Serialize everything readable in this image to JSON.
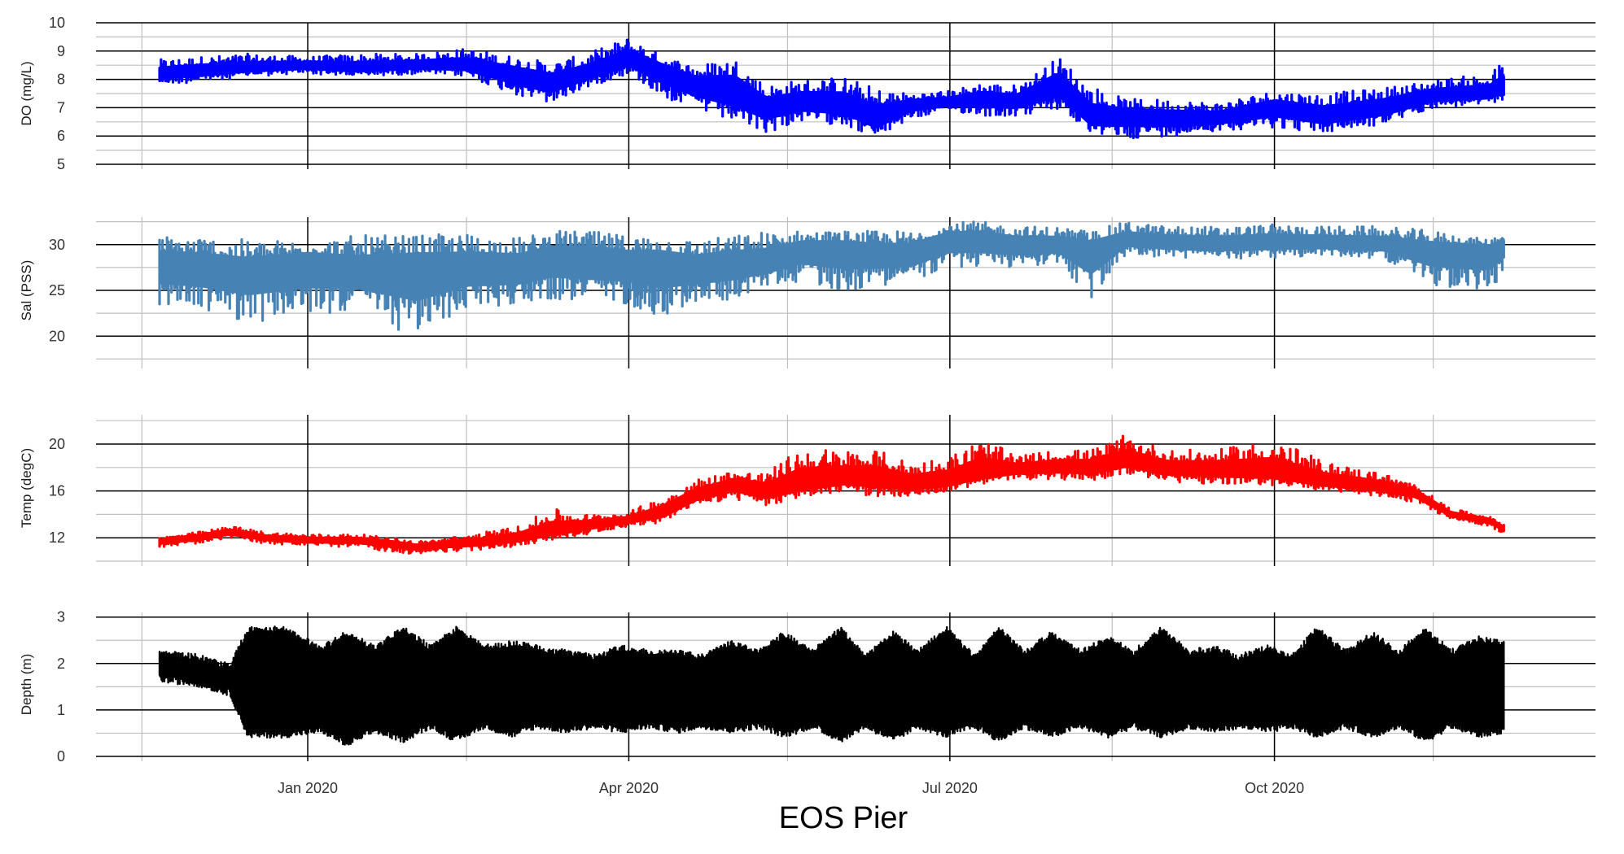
{
  "figure": {
    "xlabel": "EOS Pier"
  },
  "chart_data": [
    {
      "type": "line",
      "ylabel": "DO (mg/L)",
      "color": "#0000ff",
      "ylim": [
        5,
        10
      ],
      "yticks": [
        5,
        6,
        7,
        8,
        9,
        10
      ],
      "xlim": [
        "2019-11-02",
        "2020-12-31"
      ],
      "xticks": [
        "2020-01-01",
        "2020-04-01",
        "2020-07-01",
        "2020-10-01"
      ],
      "xticklabels": [
        "Jan 2020",
        "Apr 2020",
        "Jul 2020",
        "Oct 2020"
      ],
      "series": [
        {
          "x": [
            "2019-11-20",
            "2019-12-01",
            "2019-12-15",
            "2020-01-01",
            "2020-01-15",
            "2020-02-01",
            "2020-02-15",
            "2020-03-01",
            "2020-03-10",
            "2020-03-20",
            "2020-04-01",
            "2020-04-10",
            "2020-04-20",
            "2020-05-01",
            "2020-05-10",
            "2020-05-20",
            "2020-06-01",
            "2020-06-10",
            "2020-06-20",
            "2020-07-01",
            "2020-07-10",
            "2020-07-20",
            "2020-08-01",
            "2020-08-10",
            "2020-08-20",
            "2020-09-01",
            "2020-09-15",
            "2020-10-01",
            "2020-10-15",
            "2020-11-01",
            "2020-11-15",
            "2020-12-01",
            "2020-12-05"
          ],
          "ymid": [
            8.2,
            8.3,
            8.4,
            8.5,
            8.4,
            8.5,
            8.5,
            8.1,
            7.9,
            8.2,
            8.7,
            8.3,
            7.8,
            7.6,
            7.0,
            7.2,
            7.1,
            6.6,
            7.1,
            7.2,
            7.3,
            7.2,
            7.8,
            6.6,
            6.7,
            6.6,
            6.6,
            7.0,
            6.7,
            7.0,
            7.4,
            7.5,
            7.7
          ],
          "ybot": [
            7.8,
            7.9,
            8.1,
            8.2,
            8.1,
            8.2,
            8.1,
            7.4,
            7.1,
            7.7,
            8.2,
            7.4,
            6.9,
            6.4,
            6.1,
            6.5,
            6.4,
            5.9,
            6.6,
            6.9,
            6.7,
            6.7,
            6.9,
            6.1,
            5.9,
            6.0,
            6.2,
            6.3,
            6.1,
            6.4,
            7.0,
            7.1,
            7.3
          ],
          "ytop": [
            8.7,
            8.8,
            8.9,
            8.8,
            8.9,
            8.9,
            9.1,
            8.8,
            8.6,
            8.9,
            9.5,
            8.9,
            8.5,
            8.8,
            7.8,
            8.0,
            8.1,
            7.7,
            7.5,
            7.6,
            7.9,
            7.8,
            8.8,
            7.8,
            7.3,
            7.3,
            7.2,
            7.6,
            7.5,
            7.7,
            8.0,
            8.2,
            8.7
          ]
        }
      ]
    },
    {
      "type": "line",
      "ylabel": "Sal (PSS)",
      "color": "#4682b4",
      "ylim": [
        17,
        33
      ],
      "yticks": [
        20,
        25,
        30
      ],
      "xlim": [
        "2019-11-02",
        "2020-12-31"
      ],
      "xticks": [
        "2020-01-01",
        "2020-04-01",
        "2020-07-01",
        "2020-10-01"
      ],
      "xticklabels": [
        "Jan 2020",
        "Apr 2020",
        "Jul 2020",
        "Oct 2020"
      ],
      "series": [
        {
          "x": [
            "2019-11-20",
            "2019-12-01",
            "2019-12-15",
            "2020-01-01",
            "2020-01-15",
            "2020-02-01",
            "2020-02-15",
            "2020-03-01",
            "2020-03-10",
            "2020-03-20",
            "2020-04-01",
            "2020-04-10",
            "2020-04-20",
            "2020-05-01",
            "2020-05-10",
            "2020-05-20",
            "2020-06-01",
            "2020-06-10",
            "2020-06-20",
            "2020-07-01",
            "2020-07-10",
            "2020-07-20",
            "2020-08-01",
            "2020-08-10",
            "2020-08-20",
            "2020-09-01",
            "2020-09-15",
            "2020-10-01",
            "2020-10-15",
            "2020-11-01",
            "2020-11-15",
            "2020-12-01",
            "2020-12-05"
          ],
          "ymid": [
            28,
            27.5,
            27,
            28,
            27,
            27.5,
            27.5,
            27.5,
            28.5,
            28.5,
            28,
            28,
            27.5,
            28,
            28,
            29.5,
            29.5,
            29,
            29,
            30.5,
            30.5,
            30,
            30,
            29.5,
            30.5,
            30.3,
            30,
            30.3,
            30.2,
            30,
            29.3,
            29.5,
            29.6
          ],
          "ybot": [
            23,
            23,
            21.5,
            22,
            23,
            19.5,
            23,
            23.5,
            24,
            23.5,
            23.5,
            22,
            23.5,
            24,
            25.5,
            26,
            24.8,
            25.5,
            26,
            27.5,
            27.5,
            27.5,
            28,
            23.5,
            29,
            28.5,
            28.5,
            28.5,
            28.8,
            28.5,
            25.5,
            24.5,
            27.5
          ],
          "ytop": [
            31,
            31,
            30.5,
            30.5,
            31,
            31,
            31.2,
            30.8,
            31.5,
            31.5,
            31,
            31,
            30.5,
            31,
            31.5,
            31.5,
            31.5,
            31.5,
            31.5,
            32.5,
            32.5,
            32,
            32,
            31.5,
            32.5,
            32,
            32,
            32.2,
            32,
            32,
            31.5,
            30.5,
            31.8
          ]
        }
      ]
    },
    {
      "type": "line",
      "ylabel": "Temp (degC)",
      "color": "#ff0000",
      "ylim": [
        10,
        22.5
      ],
      "yticks": [
        12,
        16,
        20
      ],
      "xlim": [
        "2019-11-02",
        "2020-12-31"
      ],
      "xticks": [
        "2020-01-01",
        "2020-04-01",
        "2020-07-01",
        "2020-10-01"
      ],
      "xticklabels": [
        "Jan 2020",
        "Apr 2020",
        "Jul 2020",
        "Oct 2020"
      ],
      "series": [
        {
          "x": [
            "2019-11-20",
            "2019-12-01",
            "2019-12-10",
            "2019-12-20",
            "2020-01-01",
            "2020-01-15",
            "2020-01-25",
            "2020-02-01",
            "2020-02-10",
            "2020-02-20",
            "2020-03-01",
            "2020-03-10",
            "2020-03-20",
            "2020-04-01",
            "2020-04-10",
            "2020-04-20",
            "2020-05-01",
            "2020-05-10",
            "2020-05-20",
            "2020-06-01",
            "2020-06-10",
            "2020-06-20",
            "2020-07-01",
            "2020-07-10",
            "2020-07-20",
            "2020-08-01",
            "2020-08-10",
            "2020-08-20",
            "2020-09-01",
            "2020-09-15",
            "2020-10-01",
            "2020-10-15",
            "2020-11-01",
            "2020-11-10",
            "2020-11-20",
            "2020-12-01",
            "2020-12-05"
          ],
          "ymid": [
            11.8,
            12.0,
            12.5,
            12.0,
            11.8,
            11.8,
            11.5,
            11.2,
            11.5,
            11.6,
            12.0,
            12.5,
            13.0,
            13.5,
            14.0,
            15.5,
            16.5,
            16.0,
            16.5,
            17.0,
            17.0,
            16.5,
            16.8,
            17.5,
            17.8,
            18.0,
            18.0,
            18.5,
            17.8,
            17.8,
            17.5,
            16.8,
            16.3,
            15.8,
            14.0,
            13.5,
            12.8
          ],
          "ybot": [
            11.2,
            11.5,
            12.0,
            11.5,
            11.3,
            11.2,
            10.8,
            10.6,
            10.8,
            11.0,
            11.3,
            11.8,
            12.3,
            13.0,
            13.3,
            14.8,
            15.3,
            14.5,
            15.5,
            16.0,
            15.5,
            15.5,
            16.0,
            16.5,
            17.0,
            17.0,
            16.8,
            17.5,
            16.8,
            16.5,
            16.5,
            16.0,
            15.5,
            15.0,
            13.6,
            13.0,
            12.3
          ],
          "ytop": [
            12.0,
            12.5,
            13.0,
            12.5,
            12.3,
            12.3,
            12.0,
            11.7,
            12.0,
            12.5,
            13.0,
            14.5,
            14.0,
            14.2,
            15.5,
            17.0,
            17.8,
            17.5,
            19.8,
            19.5,
            19.5,
            18.5,
            19.0,
            20.5,
            19.0,
            19.5,
            19.5,
            20.8,
            19.5,
            19.5,
            20.5,
            18.5,
            17.5,
            16.5,
            14.5,
            13.8,
            13.2
          ]
        }
      ]
    },
    {
      "type": "line",
      "ylabel": "Depth (m)",
      "color": "#000000",
      "ylim": [
        0,
        3.1
      ],
      "yticks": [
        0,
        1,
        2,
        3
      ],
      "xlim": [
        "2019-11-02",
        "2020-12-31"
      ],
      "xticks": [
        "2020-01-01",
        "2020-04-01",
        "2020-07-01",
        "2020-10-01"
      ],
      "xticklabels": [
        "Jan 2020",
        "Apr 2020",
        "Jul 2020",
        "Oct 2020"
      ],
      "series": [
        {
          "x": [
            "2019-11-20",
            "2019-12-01",
            "2019-12-10",
            "2019-12-15",
            "2019-12-25",
            "2020-01-05",
            "2020-01-12",
            "2020-01-20",
            "2020-01-28",
            "2020-02-05",
            "2020-02-12",
            "2020-02-20",
            "2020-02-28",
            "2020-03-06",
            "2020-03-14",
            "2020-03-22",
            "2020-03-30",
            "2020-04-07",
            "2020-04-15",
            "2020-04-22",
            "2020-04-30",
            "2020-05-08",
            "2020-05-15",
            "2020-05-23",
            "2020-05-31",
            "2020-06-07",
            "2020-06-15",
            "2020-06-22",
            "2020-06-30",
            "2020-07-08",
            "2020-07-15",
            "2020-07-22",
            "2020-07-30",
            "2020-08-07",
            "2020-08-15",
            "2020-08-22",
            "2020-08-30",
            "2020-09-07",
            "2020-09-14",
            "2020-09-21",
            "2020-09-29",
            "2020-10-06",
            "2020-10-13",
            "2020-10-21",
            "2020-10-29",
            "2020-11-05",
            "2020-11-13",
            "2020-11-20",
            "2020-11-28",
            "2020-12-05"
          ],
          "ymin": [
            1.6,
            1.5,
            1.3,
            0.4,
            0.4,
            0.5,
            0.2,
            0.5,
            0.3,
            0.6,
            0.3,
            0.6,
            0.4,
            0.6,
            0.5,
            0.6,
            0.5,
            0.6,
            0.5,
            0.6,
            0.5,
            0.6,
            0.4,
            0.6,
            0.3,
            0.6,
            0.3,
            0.6,
            0.4,
            0.6,
            0.3,
            0.6,
            0.4,
            0.6,
            0.4,
            0.6,
            0.4,
            0.6,
            0.5,
            0.6,
            0.5,
            0.6,
            0.4,
            0.6,
            0.4,
            0.6,
            0.3,
            0.6,
            0.4,
            0.5
          ],
          "ymax": [
            2.3,
            2.2,
            2.0,
            2.8,
            2.8,
            2.4,
            2.7,
            2.4,
            2.8,
            2.4,
            2.8,
            2.4,
            2.5,
            2.4,
            2.3,
            2.2,
            2.4,
            2.3,
            2.3,
            2.2,
            2.5,
            2.3,
            2.7,
            2.3,
            2.8,
            2.2,
            2.7,
            2.3,
            2.8,
            2.2,
            2.8,
            2.3,
            2.7,
            2.3,
            2.6,
            2.3,
            2.8,
            2.3,
            2.4,
            2.2,
            2.4,
            2.2,
            2.8,
            2.3,
            2.7,
            2.3,
            2.8,
            2.3,
            2.6,
            2.5
          ]
        }
      ]
    }
  ]
}
